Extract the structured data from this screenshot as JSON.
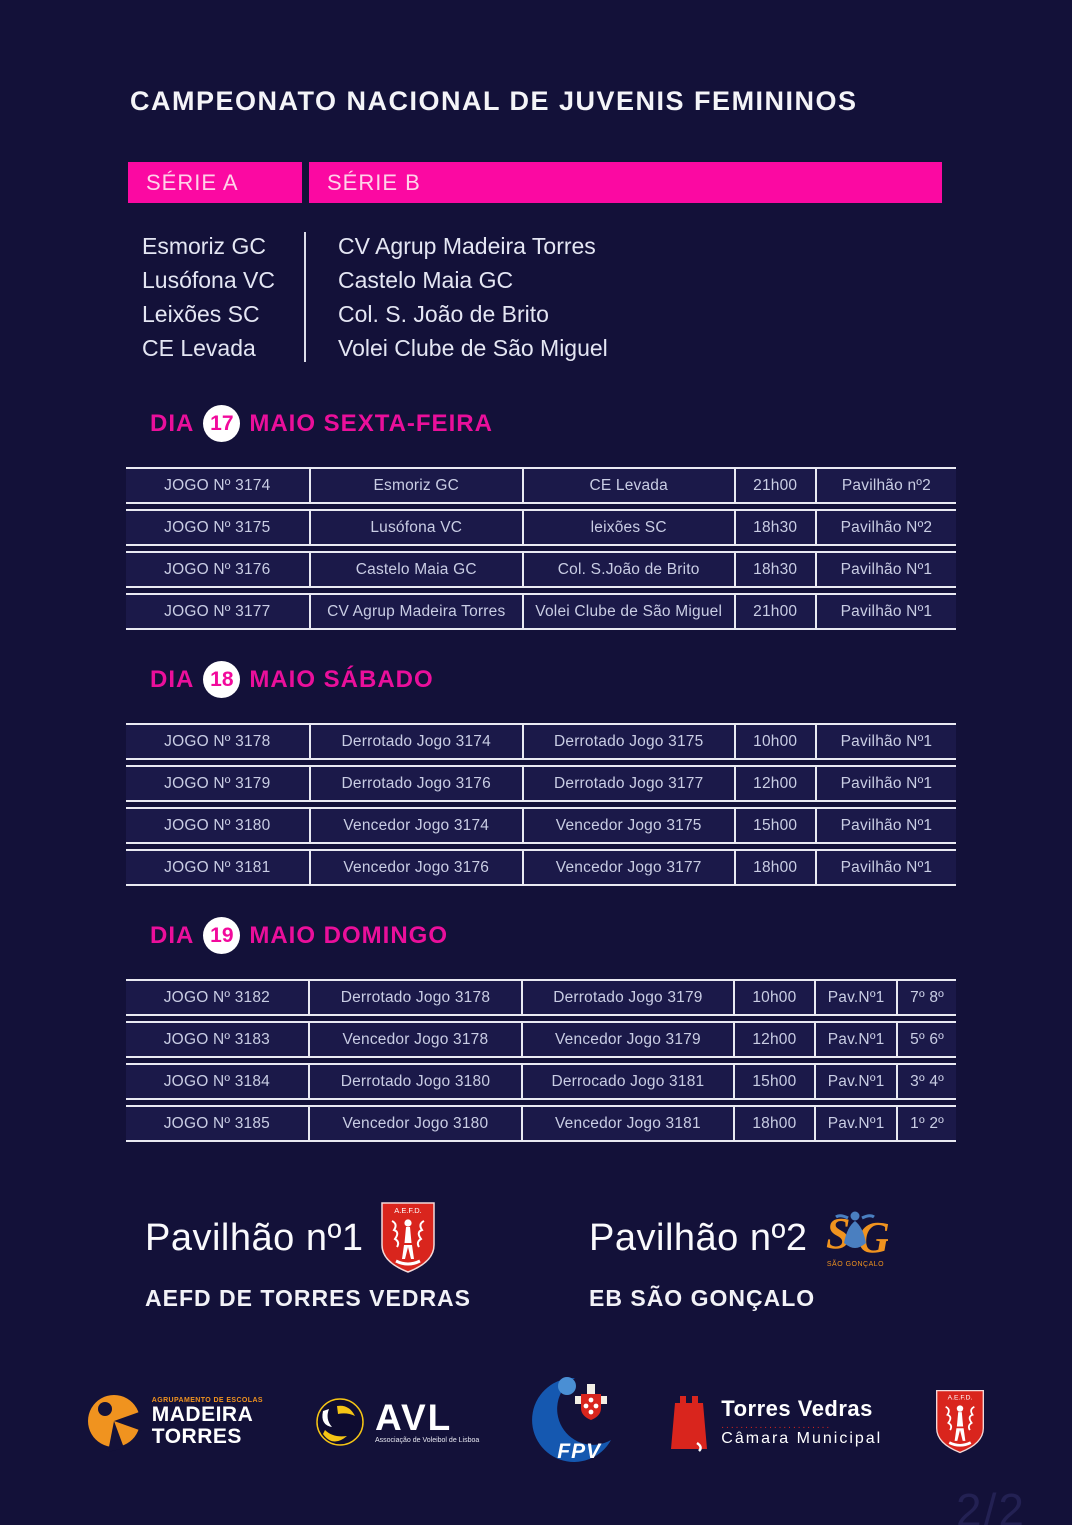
{
  "title": "CAMPEONATO NACIONAL DE JUVENIS FEMININOS",
  "page_indicator": "2/2",
  "colors": {
    "background": "#131139",
    "accent_magenta": "#fb09a2",
    "day_header_pink": "#ea0f9b",
    "table_border": "#e9e9f2",
    "crest_red": "#d9251d",
    "sponsor_orange": "#f0931f",
    "fpv_blue": "#1558b0"
  },
  "series": {
    "a": {
      "label": "SÉRIE A",
      "teams": [
        "Esmoriz GC",
        "Lusófona VC",
        "Leixões SC",
        "CE Levada"
      ]
    },
    "b": {
      "label": "SÉRIE B",
      "teams": [
        "CV Agrup Madeira Torres",
        "Castelo Maia GC",
        "Col. S. João de Brito",
        "Volei Clube de São Miguel"
      ]
    }
  },
  "days": [
    {
      "label_prefix": "DIA",
      "day_number": "17",
      "label_suffix": "MAIO SEXTA-FEIRA",
      "columns": [
        "game",
        "home",
        "away",
        "time",
        "venue"
      ],
      "games": [
        {
          "game": "JOGO Nº 3174",
          "home": "Esmoriz GC",
          "away": "CE Levada",
          "time": "21h00",
          "venue": "Pavilhão nº2"
        },
        {
          "game": "JOGO Nº 3175",
          "home": "Lusófona VC",
          "away": "leixões SC",
          "time": "18h30",
          "venue": "Pavilhão Nº2"
        },
        {
          "game": "JOGO Nº 3176",
          "home": "Castelo Maia GC",
          "away": "Col. S.João de Brito",
          "time": "18h30",
          "venue": "Pavilhão Nº1"
        },
        {
          "game": "JOGO Nº 3177",
          "home": "CV Agrup Madeira Torres",
          "away": "Volei Clube de São Miguel",
          "time": "21h00",
          "venue": "Pavilhão Nº1"
        }
      ]
    },
    {
      "label_prefix": "DIA",
      "day_number": "18",
      "label_suffix": "MAIO SÁBADO",
      "columns": [
        "game",
        "home",
        "away",
        "time",
        "venue"
      ],
      "games": [
        {
          "game": "JOGO Nº 3178",
          "home": "Derrotado Jogo 3174",
          "away": "Derrotado Jogo 3175",
          "time": "10h00",
          "venue": "Pavilhão Nº1"
        },
        {
          "game": "JOGO Nº 3179",
          "home": "Derrotado Jogo 3176",
          "away": "Derrotado Jogo 3177",
          "time": "12h00",
          "venue": "Pavilhão Nº1"
        },
        {
          "game": "JOGO Nº 3180",
          "home": "Vencedor Jogo 3174",
          "away": "Vencedor Jogo 3175",
          "time": "15h00",
          "venue": "Pavilhão Nº1"
        },
        {
          "game": "JOGO Nº 3181",
          "home": "Vencedor Jogo 3176",
          "away": "Vencedor Jogo 3177",
          "time": "18h00",
          "venue": "Pavilhão Nº1"
        }
      ]
    },
    {
      "label_prefix": "DIA",
      "day_number": "19",
      "label_suffix": "MAIO DOMINGO",
      "columns": [
        "game",
        "home",
        "away",
        "time",
        "venue",
        "position"
      ],
      "games": [
        {
          "game": "JOGO Nº 3182",
          "home": "Derrotado Jogo 3178",
          "away": "Derrotado Jogo 3179",
          "time": "10h00",
          "venue": "Pav.Nº1",
          "position": "7º 8º"
        },
        {
          "game": "JOGO Nº 3183",
          "home": "Vencedor Jogo 3178",
          "away": "Vencedor Jogo 3179",
          "time": "12h00",
          "venue": "Pav.Nº1",
          "position": "5º 6º"
        },
        {
          "game": "JOGO Nº 3184",
          "home": "Derrotado Jogo 3180",
          "away": "Derrocado Jogo 3181",
          "time": "15h00",
          "venue": "Pav.Nº1",
          "position": "3º 4º"
        },
        {
          "game": "JOGO Nº 3185",
          "home": "Vencedor Jogo 3180",
          "away": "Vencedor Jogo 3181",
          "time": "18h00",
          "venue": "Pav.Nº1",
          "position": "1º 2º"
        }
      ]
    }
  ],
  "venues": [
    {
      "title": "Pavilhão nº1",
      "subtitle": "AEFD DE TORRES VEDRAS",
      "logo": "aefd-crest"
    },
    {
      "title": "Pavilhão nº2",
      "subtitle": "EB SÃO GONÇALO",
      "logo": "sao-goncalo"
    }
  ],
  "logos": {
    "aefd": {
      "abbr": "A.E.F.D."
    },
    "sao_goncalo": {
      "s": "S",
      "g": "G",
      "caption": "SÃO GONÇALO"
    },
    "madeira_torres": {
      "line1": "AGRUPAMENTO DE ESCOLAS",
      "line2": "MADEIRA",
      "line3": "TORRES"
    },
    "avl": {
      "abbr": "AVL",
      "subtitle": "Associação de Voleibol de Lisboa"
    },
    "fpv": {
      "abbr": "FPV"
    },
    "torres_vedras": {
      "line1": "Torres Vedras",
      "line2": "Câmara Municipal",
      "dots": "......................."
    }
  }
}
